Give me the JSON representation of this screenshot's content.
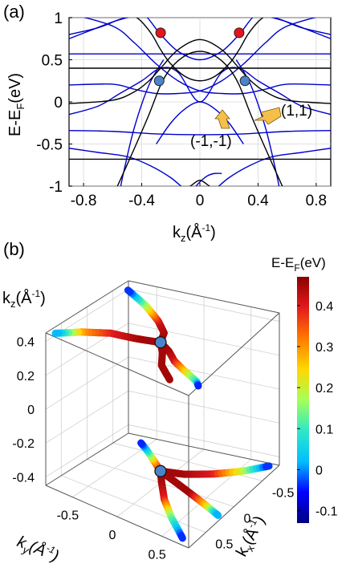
{
  "chart_data": [
    {
      "panel": "(a)",
      "type": "line",
      "xlabel": "k",
      "xlabel_sub": "z",
      "xlabel_unit": "(Å",
      "xlabel_sup": "-1",
      "xlabel_close": ")",
      "ylabel": "E-E",
      "ylabel_sub": "F",
      "ylabel_unit": "(eV)",
      "xlim": [
        -0.9,
        0.9
      ],
      "ylim": [
        -1,
        1
      ],
      "xticks": [
        "-0.8",
        "-0.4",
        "0",
        "0.4",
        "0.8"
      ],
      "xtick_values": [
        -0.8,
        -0.4,
        0,
        0.4,
        0.8
      ],
      "yticks": [
        "1",
        "0.5",
        "0",
        "-0.5",
        "-1"
      ],
      "ytick_values": [
        1,
        0.5,
        0,
        -0.5,
        -1
      ],
      "series_colors": {
        "black": "#000000",
        "blue": "#0000cc"
      },
      "black_bands": [
        {
          "x": [
            -0.9,
            -0.6,
            -0.4,
            -0.3,
            -0.2,
            0,
            0.2,
            0.3,
            0.4,
            0.6,
            0.9
          ],
          "y": [
            0.4,
            0.4,
            0.4,
            0.4,
            0.4,
            0.4,
            0.4,
            0.4,
            0.4,
            0.4,
            0.4
          ]
        },
        {
          "x": [
            -0.9,
            -0.6,
            -0.4,
            -0.3,
            -0.2,
            0,
            0.2,
            0.3,
            0.4,
            0.6,
            0.9
          ],
          "y": [
            -0.68,
            -0.68,
            -0.68,
            -0.68,
            -0.68,
            -0.68,
            -0.68,
            -0.68,
            -0.68,
            -0.68,
            -0.68
          ]
        },
        {
          "x": [
            -0.9,
            -0.6,
            -0.45,
            -0.35,
            -0.27,
            -0.15,
            0,
            0.15,
            0.27,
            0.35,
            0.45,
            0.6,
            0.9
          ],
          "y": [
            -0.02,
            0.02,
            0.12,
            0.25,
            0.4,
            0.62,
            0.74,
            0.62,
            0.4,
            0.25,
            0.12,
            0.02,
            -0.02
          ]
        },
        {
          "x": [
            -0.47,
            -0.4,
            -0.33,
            -0.27,
            -0.2,
            -0.1,
            0,
            0.1,
            0.2,
            0.27,
            0.33,
            0.4,
            0.47
          ],
          "y": [
            1.05,
            0.95,
            0.8,
            0.62,
            0.45,
            0.3,
            0.25,
            0.3,
            0.45,
            0.62,
            0.8,
            0.95,
            1.05
          ]
        },
        {
          "x": [
            -0.58,
            -0.45,
            -0.35,
            -0.27,
            -0.2,
            -0.1,
            0,
            0.1,
            0.2,
            0.27,
            0.35,
            0.45,
            0.58
          ],
          "y": [
            -1.05,
            -0.55,
            -0.15,
            0.2,
            0.4,
            0.55,
            0.6,
            0.55,
            0.4,
            0.2,
            -0.15,
            -0.55,
            -1.05
          ]
        },
        {
          "x": [
            -0.1,
            -0.05,
            0,
            0.05,
            0.1
          ],
          "y": [
            -1.05,
            -0.98,
            -0.93,
            -0.98,
            -1.05
          ]
        }
      ],
      "blue_bands": [
        {
          "x": [
            -0.9,
            -0.6,
            -0.3,
            0,
            0.3,
            0.6,
            0.9
          ],
          "y": [
            0.57,
            0.57,
            0.57,
            0.57,
            0.57,
            0.57,
            0.57
          ]
        },
        {
          "x": [
            -0.9,
            -0.6,
            -0.3,
            0,
            0.3,
            0.6,
            0.9
          ],
          "y": [
            -0.34,
            -0.35,
            -0.38,
            -0.39,
            -0.38,
            -0.35,
            -0.34
          ]
        },
        {
          "x": [
            -0.9,
            -0.6,
            -0.45,
            -0.3,
            -0.15,
            0,
            0.15,
            0.3,
            0.45,
            0.6,
            0.9
          ],
          "y": [
            0.2,
            0.21,
            0.15,
            0.1,
            0.1,
            0.13,
            0.25,
            0.45,
            0.7,
            0.9,
            1.05
          ]
        },
        {
          "x": [
            -0.9,
            -0.6,
            -0.45,
            -0.3,
            -0.15,
            0,
            0.15,
            0.3,
            0.45,
            0.6,
            0.9
          ],
          "y": [
            1.05,
            0.9,
            0.7,
            0.45,
            0.25,
            0.13,
            0.1,
            0.1,
            0.15,
            0.21,
            0.2
          ]
        },
        {
          "x": [
            -0.9,
            -0.7,
            -0.55,
            -0.4,
            -0.27,
            -0.15,
            0,
            0.15,
            0.27,
            0.4,
            0.55,
            0.7,
            0.9
          ],
          "y": [
            -0.15,
            -0.05,
            0.1,
            0.25,
            0.4,
            0.35,
            0.0,
            0.35,
            0.4,
            0.25,
            0.1,
            -0.05,
            -0.15
          ]
        },
        {
          "x": [
            -0.9,
            -0.7,
            -0.55,
            -0.4,
            -0.27,
            -0.15,
            0,
            0.15,
            0.27,
            0.4,
            0.55,
            0.7,
            0.9
          ],
          "y": [
            0.8,
            0.88,
            0.98,
            1.05,
            0.8,
            0.6,
            0.5,
            0.6,
            0.8,
            1.05,
            0.98,
            0.88,
            0.8
          ]
        },
        {
          "x": [
            -0.3,
            -0.2,
            -0.1,
            0,
            0.1,
            0.2,
            0.3
          ],
          "y": [
            -0.5,
            -0.25,
            -0.08,
            0.0,
            -0.08,
            -0.25,
            -0.5
          ]
        },
        {
          "x": [
            -0.9,
            -0.7,
            -0.5,
            -0.35,
            -0.2,
            -0.1
          ],
          "y": [
            -0.55,
            -0.6,
            -0.65,
            -0.75,
            -0.9,
            -1.05
          ]
        },
        {
          "x": [
            0.1,
            0.2,
            0.35,
            0.5,
            0.7,
            0.9
          ],
          "y": [
            -1.05,
            -0.9,
            -0.75,
            -0.65,
            -0.6,
            -0.55
          ]
        },
        {
          "x": [
            -0.05,
            0.0,
            0.05,
            0.1,
            0.15
          ],
          "y": [
            -1.05,
            -0.95,
            -0.88,
            -0.85,
            -0.85
          ]
        },
        {
          "x": [
            -0.9,
            -0.75,
            -0.6,
            -0.5,
            -0.4
          ],
          "y": [
            0.75,
            0.85,
            0.95,
            1.0,
            1.05
          ]
        },
        {
          "x": [
            0.4,
            0.5,
            0.6,
            0.75,
            0.9
          ],
          "y": [
            1.05,
            1.0,
            0.95,
            0.85,
            0.75
          ]
        },
        {
          "x": [
            0.25,
            0.35,
            0.45,
            0.52,
            0.55
          ],
          "y": [
            0.5,
            0.2,
            -0.3,
            -0.8,
            -1.05
          ]
        },
        {
          "x": [
            -0.55,
            -0.52,
            -0.45,
            -0.35,
            -0.25
          ],
          "y": [
            -1.05,
            -0.8,
            -0.3,
            0.2,
            0.5
          ]
        }
      ],
      "points": [
        {
          "x": -0.27,
          "y": 0.82,
          "color": "#e8141b"
        },
        {
          "x": 0.27,
          "y": 0.82,
          "color": "#e8141b"
        },
        {
          "x": -0.28,
          "y": 0.25,
          "color": "#4b84c9"
        },
        {
          "x": 0.31,
          "y": 0.25,
          "color": "#4b84c9"
        }
      ],
      "annotations": [
        {
          "text": "(1,1)",
          "x": 0.66,
          "y": 0.08
        },
        {
          "text": "(-1,-1)",
          "x": -0.05,
          "y": -0.33
        }
      ],
      "arrow_color": "#f5c04a",
      "arrow_stroke": "#7a5a10"
    },
    {
      "panel": "(b)",
      "type": "scatter3d",
      "xlabel": "k",
      "xlabel_sub": "x",
      "xlabel_unit": "(Å",
      "xlabel_sup": "-1",
      "xlabel_close": ")",
      "ylabel": "k",
      "ylabel_sub": "y",
      "ylabel_unit": "(Å",
      "ylabel_sup": "-1",
      "ylabel_close": ")",
      "zlabel": "k",
      "zlabel_sub": "z",
      "zlabel_unit": "(Å",
      "zlabel_sup": "-1",
      "zlabel_close": ")",
      "xlim": [
        -0.8,
        0.8
      ],
      "ylim": [
        -0.8,
        0.8
      ],
      "zlim": [
        -0.45,
        0.45
      ],
      "zticks": [
        "0.4",
        "0.2",
        "0",
        "-0.2",
        "-0.4"
      ],
      "ztick_values": [
        0.4,
        0.2,
        0,
        -0.2,
        -0.4
      ],
      "yticks": [
        "-0.5",
        "0",
        "0.5"
      ],
      "ytick_values": [
        -0.5,
        0,
        0.5
      ],
      "xticks": [
        "-0.5",
        "0",
        "0.5"
      ],
      "xtick_values": [
        -0.5,
        0,
        0.5
      ],
      "colorbar": {
        "title": "E-E",
        "title_sub": "F",
        "title_unit": "(eV)",
        "ticks": [
          "0.4",
          "0.3",
          "0.2",
          "0.1",
          "0",
          "-0.1"
        ],
        "tick_values": [
          0.4,
          0.3,
          0.2,
          0.1,
          0,
          -0.1
        ],
        "range": [
          -0.13,
          0.47
        ],
        "stops": [
          "#00007f",
          "#0000ff",
          "#00bfff",
          "#2ee8c8",
          "#a6ff59",
          "#ffd700",
          "#ff7a00",
          "#e41a1c",
          "#8b0000"
        ]
      },
      "curves": [
        {
          "x": [
            0.0,
            0.1,
            0.25,
            0.35,
            0.5,
            0.55
          ],
          "y": [
            0.0,
            0.15,
            0.3,
            0.45,
            0.7,
            0.75
          ],
          "z": [
            0.38,
            0.38,
            0.39,
            0.4,
            0.42,
            0.42
          ],
          "e": [
            0.45,
            0.45,
            0.42,
            0.3,
            0.1,
            -0.05
          ]
        },
        {
          "x": [
            0.0,
            -0.15,
            -0.3,
            -0.5,
            -0.7
          ],
          "y": [
            0.0,
            -0.05,
            -0.2,
            -0.45,
            -0.75
          ],
          "z": [
            0.38,
            0.39,
            0.4,
            0.41,
            0.42
          ],
          "e": [
            0.45,
            0.45,
            0.42,
            0.2,
            -0.05
          ]
        },
        {
          "x": [
            0.0,
            0.1,
            0.25,
            0.45,
            0.7
          ],
          "y": [
            0.0,
            -0.2,
            -0.4,
            -0.6,
            -0.75
          ],
          "z": [
            0.38,
            0.39,
            0.42,
            0.43,
            0.44
          ],
          "e": [
            0.45,
            0.45,
            0.4,
            0.3,
            0.0
          ]
        },
        {
          "x": [
            0.0,
            0.05,
            0.15,
            0.2,
            0.25
          ],
          "y": [
            0.0,
            0.05,
            0.1,
            0.18,
            0.25
          ],
          "z": [
            0.38,
            0.34,
            0.3,
            0.28,
            0.27
          ],
          "e": [
            0.45,
            0.45,
            0.45,
            0.45,
            0.45
          ]
        },
        {
          "x": [
            0.0,
            -0.1,
            -0.3,
            -0.5,
            -0.7
          ],
          "y": [
            0.0,
            0.2,
            0.4,
            0.6,
            0.75
          ],
          "z": [
            -0.38,
            -0.39,
            -0.41,
            -0.42,
            -0.43
          ],
          "e": [
            0.45,
            0.45,
            0.4,
            0.2,
            -0.05
          ]
        },
        {
          "x": [
            0.0,
            0.15,
            0.35,
            0.55,
            0.75
          ],
          "y": [
            0.0,
            0.1,
            0.25,
            0.45,
            0.7
          ],
          "z": [
            -0.38,
            -0.39,
            -0.41,
            -0.42,
            -0.43
          ],
          "e": [
            0.45,
            0.45,
            0.4,
            0.15,
            -0.05
          ]
        },
        {
          "x": [
            0.0,
            0.05,
            0.1,
            0.15,
            0.2
          ],
          "y": [
            0.0,
            0.2,
            0.4,
            0.6,
            0.75
          ],
          "z": [
            -0.38,
            -0.4,
            -0.42,
            -0.44,
            -0.45
          ],
          "e": [
            0.45,
            0.45,
            0.45,
            0.25,
            0.0
          ]
        },
        {
          "x": [
            0.0,
            -0.05,
            -0.1,
            -0.15
          ],
          "y": [
            0.0,
            -0.1,
            -0.2,
            -0.3
          ],
          "z": [
            -0.38,
            -0.35,
            -0.32,
            -0.3
          ],
          "e": [
            0.45,
            0.3,
            0.1,
            -0.05
          ]
        }
      ],
      "points": [
        {
          "x": 0.0,
          "y": 0.0,
          "z": 0.38,
          "color": "#4b84c9"
        },
        {
          "x": 0.0,
          "y": 0.0,
          "z": -0.38,
          "color": "#4b84c9"
        }
      ]
    }
  ]
}
